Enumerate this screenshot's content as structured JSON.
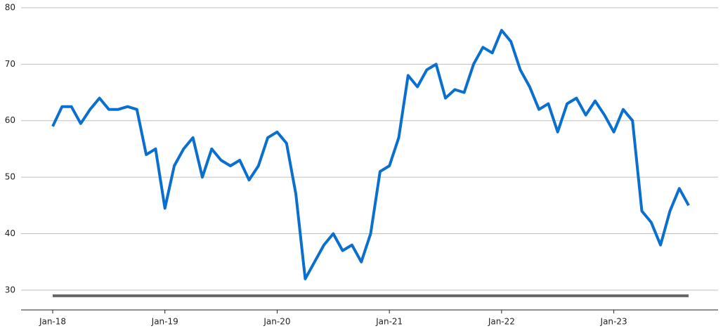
{
  "chart_data": {
    "type": "line",
    "x": [
      "2018-01",
      "2018-02",
      "2018-03",
      "2018-04",
      "2018-05",
      "2018-06",
      "2018-07",
      "2018-08",
      "2018-09",
      "2018-10",
      "2018-11",
      "2018-12",
      "2019-01",
      "2019-02",
      "2019-03",
      "2019-04",
      "2019-05",
      "2019-06",
      "2019-07",
      "2019-08",
      "2019-09",
      "2019-10",
      "2019-11",
      "2019-12",
      "2020-01",
      "2020-02",
      "2020-03",
      "2020-04",
      "2020-05",
      "2020-06",
      "2020-07",
      "2020-08",
      "2020-09",
      "2020-10",
      "2020-11",
      "2020-12",
      "2021-01",
      "2021-02",
      "2021-03",
      "2021-04",
      "2021-05",
      "2021-06",
      "2021-07",
      "2021-08",
      "2021-09",
      "2021-10",
      "2021-11",
      "2021-12",
      "2022-01",
      "2022-02",
      "2022-03",
      "2022-04",
      "2022-05",
      "2022-06",
      "2022-07",
      "2022-08",
      "2022-09",
      "2022-10",
      "2022-11",
      "2022-12",
      "2023-01",
      "2023-02",
      "2023-03",
      "2023-04",
      "2023-05",
      "2023-06",
      "2023-07",
      "2023-08",
      "2023-09"
    ],
    "series": [
      {
        "color": "#0a6fcf",
        "values": [
          59,
          62.5,
          62.5,
          59.5,
          62,
          64,
          62,
          62,
          62.5,
          62,
          54,
          55,
          44.5,
          52,
          55,
          57,
          50,
          55,
          53,
          52,
          53,
          49.5,
          52,
          57,
          58,
          56,
          47,
          32,
          35,
          38,
          40,
          37,
          38,
          35,
          40,
          51,
          52,
          57,
          68,
          66,
          69,
          70,
          64,
          65.5,
          65,
          70,
          73,
          72,
          76,
          74,
          69,
          66,
          62,
          63,
          58,
          63,
          64,
          61,
          63.5,
          61,
          58,
          62,
          60,
          44,
          42,
          38,
          44,
          48,
          45
        ]
      },
      {
        "color": "#666666",
        "values": [
          29,
          29,
          29,
          29,
          29,
          29,
          29,
          29,
          29,
          29,
          29,
          29,
          29,
          29,
          29,
          29,
          29,
          29,
          29,
          29,
          29,
          29,
          29,
          29,
          29,
          29,
          29,
          29,
          29,
          29,
          29,
          29,
          29,
          29,
          29,
          29,
          29,
          29,
          29,
          29,
          29,
          29,
          29,
          29,
          29,
          29,
          29,
          29,
          29,
          29,
          29,
          29,
          29,
          29,
          29,
          29,
          29,
          29,
          29,
          29,
          29,
          29,
          29,
          29,
          29,
          29,
          29,
          29,
          29
        ]
      }
    ],
    "ylim": [
      26.5,
      80
    ],
    "yticks": [
      30,
      40,
      50,
      60,
      70,
      80
    ],
    "xticks": [
      {
        "value": "2018-01",
        "label": "Jan-18"
      },
      {
        "value": "2019-01",
        "label": "Jan-19"
      },
      {
        "value": "2020-01",
        "label": "Jan-20"
      },
      {
        "value": "2021-01",
        "label": "Jan-21"
      },
      {
        "value": "2022-01",
        "label": "Jan-22"
      },
      {
        "value": "2023-01",
        "label": "Jan-23"
      }
    ],
    "grid": true
  }
}
